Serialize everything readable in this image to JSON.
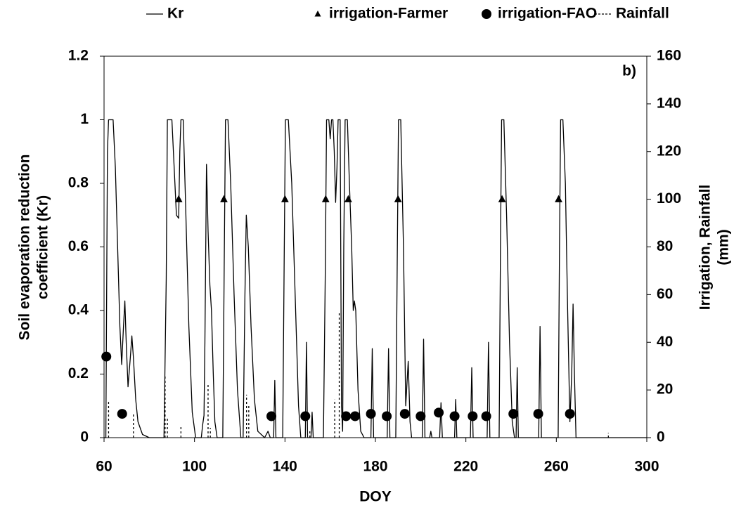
{
  "chart_data": {
    "type": "line",
    "xlabel": "DOY",
    "ylabel": [
      "Soil evaporation reduction",
      "coefficient (Kr)"
    ],
    "y2label": [
      "Irrigation, Rainfall",
      "(mm)"
    ],
    "annotation": "b)",
    "xlim": [
      60,
      300
    ],
    "xticks": [
      60,
      100,
      140,
      180,
      220,
      260,
      300
    ],
    "ylim": [
      0,
      1.2
    ],
    "yticks": [
      0,
      0.2,
      0.4,
      0.6,
      0.8,
      1,
      1.2
    ],
    "y2lim": [
      0,
      160
    ],
    "y2ticks": [
      0,
      20,
      40,
      60,
      80,
      100,
      120,
      140,
      160
    ],
    "grid": false,
    "series": [
      {
        "name": "Kr",
        "kind": "line",
        "color": "#000000",
        "x": [
          60,
          60.8,
          61.5,
          62,
          64,
          65,
          66,
          67,
          67.8,
          68.6,
          69.2,
          69.8,
          70.6,
          71.6,
          72.3,
          73,
          74,
          75,
          77,
          80,
          86.5,
          87.5,
          88,
          90,
          91,
          92,
          93,
          93.5,
          94,
          95,
          96,
          97.5,
          99,
          100.5,
          103,
          103.6,
          104.2,
          104.6,
          105.3,
          106,
          106.8,
          107.5,
          108.3,
          109,
          110,
          112.5,
          113.2,
          113.7,
          114.8,
          116,
          117.5,
          119,
          120.5,
          121.5,
          122.3,
          122.9,
          123.8,
          125,
          126.5,
          128,
          131,
          132.5,
          133.5,
          135,
          135.5,
          136,
          139,
          139.7,
          140.2,
          141.5,
          143,
          144.5,
          146,
          147,
          149,
          149.5,
          150,
          151.5,
          152,
          152.5,
          157,
          157.8,
          158.4,
          159.4,
          160,
          160.6,
          161.2,
          161.8,
          162.4,
          163,
          163.5,
          164.4,
          165,
          165.5,
          166,
          166.6,
          167.6,
          168.5,
          169.5,
          170.2,
          170.7,
          171.3,
          172.3,
          173.5,
          175,
          178,
          178.6,
          179.2,
          185.2,
          185.8,
          186.4,
          189,
          189.7,
          190.2,
          191.2,
          192.4,
          193.4,
          194.5,
          195.3,
          196,
          200.7,
          201.3,
          201.9,
          204,
          204.5,
          205,
          208.4,
          209,
          209.6,
          215,
          215.5,
          216,
          222,
          222.6,
          223.2,
          229.4,
          230,
          230.6,
          234.7,
          235.3,
          235.8,
          236.8,
          238,
          239.3,
          240.5,
          241.5,
          242.2,
          242.7,
          243.2,
          252.2,
          252.8,
          253.4,
          260.8,
          261.4,
          261.9,
          262.9,
          264,
          265,
          266,
          266.8,
          267.4,
          268,
          268.7,
          300
        ],
        "values": [
          0,
          0,
          0.9,
          1,
          1,
          0.85,
          0.6,
          0.35,
          0.23,
          0.35,
          0.43,
          0.3,
          0.16,
          0.25,
          0.32,
          0.25,
          0.12,
          0.05,
          0.01,
          0,
          0,
          0.5,
          1,
          1,
          0.85,
          0.7,
          0.69,
          0.9,
          1,
          1,
          0.75,
          0.35,
          0.08,
          0,
          0,
          0.04,
          0.07,
          0.3,
          0.86,
          0.65,
          0.48,
          0.4,
          0.2,
          0.05,
          0,
          0,
          0.6,
          1,
          1,
          0.8,
          0.45,
          0.15,
          0,
          0,
          0.45,
          0.7,
          0.6,
          0.35,
          0.12,
          0.02,
          0,
          0.02,
          0,
          0,
          0.18,
          0,
          0,
          0.6,
          1,
          1,
          0.8,
          0.45,
          0.1,
          0,
          0,
          0.3,
          0,
          0,
          0.08,
          0,
          0,
          0.5,
          1,
          1,
          0.94,
          1,
          1,
          0.9,
          0.74,
          0.85,
          1,
          1,
          0.1,
          0.02,
          0.6,
          1,
          1,
          0.8,
          0.6,
          0.4,
          0.43,
          0.4,
          0.15,
          0.02,
          0,
          0,
          0.28,
          0,
          0,
          0.28,
          0,
          0,
          0.6,
          1,
          1,
          0.6,
          0.1,
          0.24,
          0.05,
          0,
          0,
          0.31,
          0,
          0,
          0.02,
          0,
          0,
          0.11,
          0,
          0,
          0.12,
          0,
          0,
          0.22,
          0,
          0,
          0.3,
          0,
          0,
          0.6,
          1,
          1,
          0.7,
          0.3,
          0.05,
          0,
          0,
          0.22,
          0,
          0,
          0.35,
          0,
          0,
          0.6,
          1,
          1,
          0.8,
          0.4,
          0.05,
          0.2,
          0.42,
          0.2,
          0,
          0
        ]
      },
      {
        "name": "irrigation-Farmer",
        "kind": "marker",
        "marker": "triangle",
        "color": "#000000",
        "axis": "y2",
        "x": [
          93,
          113,
          140,
          158,
          168,
          190,
          236,
          261
        ],
        "values": [
          100,
          100,
          100,
          100,
          100,
          100,
          100,
          100
        ]
      },
      {
        "name": "irrigation-FAO",
        "kind": "marker",
        "marker": "circle",
        "color": "#000000",
        "axis": "y2",
        "x": [
          61,
          68,
          134,
          149,
          167,
          171,
          178,
          185,
          193,
          200,
          208,
          215,
          223,
          229,
          241,
          252,
          266
        ],
        "values": [
          34,
          10,
          9,
          9,
          9,
          9,
          10,
          9,
          10,
          9,
          10.5,
          9,
          9,
          9,
          10,
          10,
          10
        ]
      },
      {
        "name": "Rainfall",
        "kind": "stem",
        "color": "#000000",
        "axis": "y2",
        "x": [
          62,
          73,
          87,
          88,
          94,
          106,
          107,
          123,
          124,
          151,
          162,
          164,
          283
        ],
        "values": [
          15,
          10,
          26,
          8,
          5,
          23,
          4,
          18,
          14,
          3,
          16,
          53,
          2
        ]
      }
    ]
  }
}
